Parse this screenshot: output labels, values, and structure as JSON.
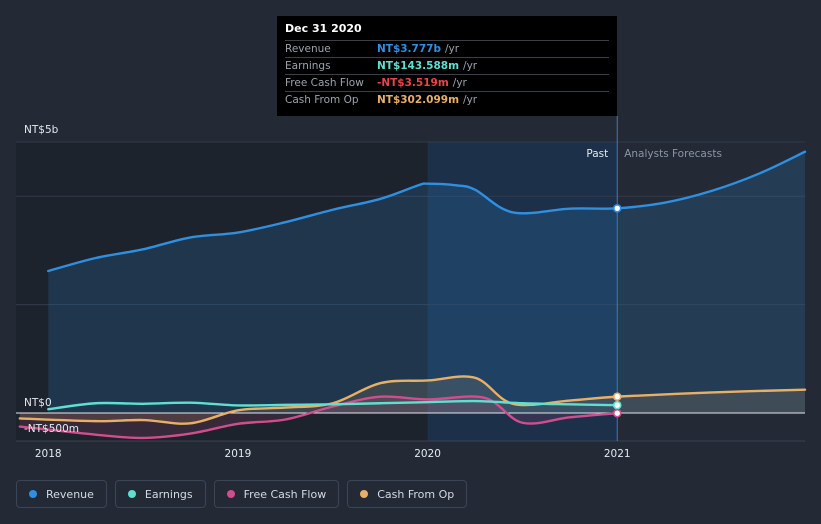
{
  "chart_data": {
    "type": "line",
    "x_ticks": [
      2018,
      2019,
      2020,
      2021
    ],
    "y_labels": {
      "top": "NT$5b",
      "zero": "NT$0",
      "bottom": "-NT$500m"
    },
    "ylim": [
      -500,
      5000
    ],
    "xlim": [
      2017.83,
      2021.99
    ],
    "past_label": "Past",
    "forecast_label": "Analysts Forecasts",
    "highlight_start": 2020.0,
    "marker_x": 2021.0,
    "series": [
      {
        "key": "revenue",
        "name": "Revenue",
        "color": "#2f8fe0",
        "fill": true,
        "x": [
          2018.0,
          2018.25,
          2018.5,
          2018.75,
          2019.0,
          2019.25,
          2019.5,
          2019.75,
          2019.95,
          2020.0,
          2020.15,
          2020.25,
          2020.45,
          2020.75,
          2021.0,
          2021.25,
          2021.5,
          2021.75,
          2021.99
        ],
        "values": [
          2620,
          2860,
          3020,
          3240,
          3330,
          3520,
          3750,
          3950,
          4200,
          4230,
          4200,
          4120,
          3700,
          3770,
          3777,
          3880,
          4100,
          4420,
          4820
        ]
      },
      {
        "key": "earnings",
        "name": "Earnings",
        "color": "#5ee0d0",
        "fill": false,
        "x": [
          2018.0,
          2018.25,
          2018.5,
          2018.75,
          2019.0,
          2019.25,
          2019.5,
          2019.75,
          2020.0,
          2020.25,
          2020.5,
          2020.75,
          2021.0
        ],
        "values": [
          70,
          180,
          170,
          190,
          140,
          150,
          160,
          180,
          200,
          220,
          180,
          160,
          143.6
        ]
      },
      {
        "key": "fcf",
        "name": "Free Cash Flow",
        "color": "#d04e8e",
        "fill": true,
        "x": [
          2017.85,
          2018.25,
          2018.5,
          2018.75,
          2019.0,
          2019.25,
          2019.5,
          2019.75,
          2020.0,
          2020.3,
          2020.5,
          2020.75,
          2021.0
        ],
        "values": [
          -250,
          -400,
          -460,
          -380,
          -200,
          -120,
          120,
          300,
          250,
          280,
          -180,
          -80,
          -3.5
        ]
      },
      {
        "key": "cfo",
        "name": "Cash From Op",
        "color": "#e8b067",
        "fill": true,
        "x": [
          2017.85,
          2018.25,
          2018.5,
          2018.75,
          2019.0,
          2019.25,
          2019.5,
          2019.75,
          2020.0,
          2020.25,
          2020.45,
          2020.75,
          2021.0,
          2021.5,
          2021.99
        ],
        "values": [
          -100,
          -150,
          -130,
          -190,
          50,
          100,
          180,
          550,
          600,
          650,
          170,
          230,
          302.1,
          380,
          430
        ]
      }
    ]
  },
  "tooltip": {
    "date": "Dec 31 2020",
    "rows": [
      {
        "label": "Revenue",
        "value": "NT$3.777b",
        "unit": "/yr",
        "color": "#2f8fe0"
      },
      {
        "label": "Earnings",
        "value": "NT$143.588m",
        "unit": "/yr",
        "color": "#5ee0d0"
      },
      {
        "label": "Free Cash Flow",
        "value": "-NT$3.519m",
        "unit": "/yr",
        "color": "#e8454a"
      },
      {
        "label": "Cash From Op",
        "value": "NT$302.099m",
        "unit": "/yr",
        "color": "#e8b067"
      }
    ]
  },
  "legend": [
    {
      "label": "Revenue",
      "color": "#2f8fe0"
    },
    {
      "label": "Earnings",
      "color": "#5ee0d0"
    },
    {
      "label": "Free Cash Flow",
      "color": "#d04e8e"
    },
    {
      "label": "Cash From Op",
      "color": "#e8b067"
    }
  ]
}
